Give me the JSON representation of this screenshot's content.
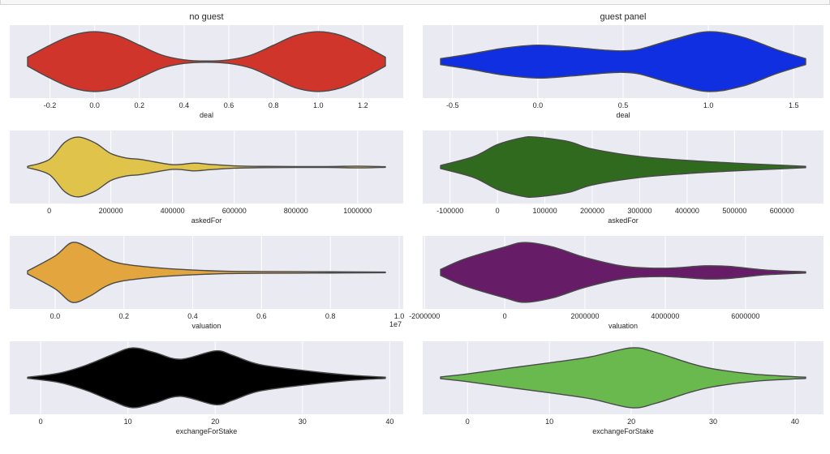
{
  "chart_data": [
    {
      "type": "violin",
      "title": "no guest",
      "xlabel": "deal",
      "xlim": [
        -0.3,
        1.3
      ],
      "color": "#d0352b",
      "ticks": [
        -0.2,
        0.0,
        0.2,
        0.4,
        0.6,
        0.8,
        1.0,
        1.2
      ],
      "tick_labels": [
        "-0.2",
        "0.0",
        "0.2",
        "0.4",
        "0.6",
        "0.8",
        "1.0",
        "1.2"
      ],
      "density": [
        [
          -0.3,
          0.15
        ],
        [
          -0.2,
          0.55
        ],
        [
          -0.1,
          0.88
        ],
        [
          0.0,
          1.0
        ],
        [
          0.1,
          0.88
        ],
        [
          0.2,
          0.55
        ],
        [
          0.3,
          0.22
        ],
        [
          0.4,
          0.06
        ],
        [
          0.5,
          0.02
        ],
        [
          0.6,
          0.06
        ],
        [
          0.7,
          0.22
        ],
        [
          0.8,
          0.55
        ],
        [
          0.9,
          0.88
        ],
        [
          1.0,
          1.0
        ],
        [
          1.1,
          0.88
        ],
        [
          1.2,
          0.55
        ],
        [
          1.3,
          0.15
        ]
      ]
    },
    {
      "type": "violin",
      "title": "guest panel",
      "xlabel": "deal",
      "xlim": [
        -0.57,
        1.57
      ],
      "color": "#0f2fe0",
      "ticks": [
        -0.5,
        0.0,
        0.5,
        1.0,
        1.5
      ],
      "tick_labels": [
        "-0.5",
        "0.0",
        "0.5",
        "1.0",
        "1.5"
      ],
      "density": [
        [
          -0.57,
          0.1
        ],
        [
          -0.4,
          0.25
        ],
        [
          -0.2,
          0.45
        ],
        [
          0.0,
          0.55
        ],
        [
          0.2,
          0.48
        ],
        [
          0.4,
          0.38
        ],
        [
          0.5,
          0.36
        ],
        [
          0.6,
          0.42
        ],
        [
          0.8,
          0.75
        ],
        [
          1.0,
          1.0
        ],
        [
          1.2,
          0.82
        ],
        [
          1.4,
          0.4
        ],
        [
          1.57,
          0.1
        ]
      ]
    },
    {
      "type": "violin",
      "title": "",
      "xlabel": "askedFor",
      "xlim": [
        -70000,
        1090000
      ],
      "color": "#dfc34a",
      "ticks": [
        0,
        200000,
        400000,
        600000,
        800000,
        1000000
      ],
      "tick_labels": [
        "0",
        "200000",
        "400000",
        "600000",
        "800000",
        "1000000"
      ],
      "density": [
        [
          -70000,
          0.02
        ],
        [
          0,
          0.25
        ],
        [
          50000,
          0.82
        ],
        [
          95000,
          1.0
        ],
        [
          150000,
          0.8
        ],
        [
          200000,
          0.45
        ],
        [
          250000,
          0.3
        ],
        [
          300000,
          0.25
        ],
        [
          400000,
          0.08
        ],
        [
          470000,
          0.13
        ],
        [
          520000,
          0.09
        ],
        [
          600000,
          0.04
        ],
        [
          700000,
          0.02
        ],
        [
          900000,
          0.015
        ],
        [
          1000000,
          0.03
        ],
        [
          1090000,
          0.01
        ]
      ]
    },
    {
      "type": "violin",
      "title": "",
      "xlabel": "askedFor",
      "xlim": [
        -120000,
        650000
      ],
      "color": "#2f6a1e",
      "ticks": [
        -100000,
        0,
        100000,
        200000,
        300000,
        400000,
        500000,
        600000
      ],
      "tick_labels": [
        "-100000",
        "0",
        "100000",
        "200000",
        "300000",
        "400000",
        "500000",
        "600000"
      ],
      "density": [
        [
          -120000,
          0.05
        ],
        [
          -50000,
          0.35
        ],
        [
          0,
          0.75
        ],
        [
          50000,
          0.97
        ],
        [
          80000,
          1.0
        ],
        [
          150000,
          0.85
        ],
        [
          200000,
          0.6
        ],
        [
          300000,
          0.35
        ],
        [
          400000,
          0.22
        ],
        [
          500000,
          0.13
        ],
        [
          600000,
          0.06
        ],
        [
          650000,
          0.02
        ]
      ]
    },
    {
      "type": "violin",
      "title": "",
      "xlabel": "valuation",
      "axis_offset": "1e7",
      "xlim": [
        -0.08,
        0.96
      ],
      "color": "#e3a53e",
      "ticks": [
        0.0,
        0.2,
        0.4,
        0.6,
        0.8,
        1.0
      ],
      "tick_labels": [
        "0.0",
        "0.2",
        "0.4",
        "0.6",
        "0.8",
        "1.0"
      ],
      "density": [
        [
          -0.08,
          0.05
        ],
        [
          0.0,
          0.55
        ],
        [
          0.05,
          1.0
        ],
        [
          0.1,
          0.8
        ],
        [
          0.15,
          0.45
        ],
        [
          0.2,
          0.28
        ],
        [
          0.3,
          0.15
        ],
        [
          0.4,
          0.08
        ],
        [
          0.5,
          0.04
        ],
        [
          0.6,
          0.03
        ],
        [
          0.8,
          0.02
        ],
        [
          0.96,
          0.01
        ]
      ]
    },
    {
      "type": "violin",
      "title": "",
      "xlabel": "valuation",
      "xlim": [
        -1600000,
        7500000
      ],
      "color": "#661c67",
      "ticks": [
        -2000000,
        0,
        2000000,
        4000000,
        6000000
      ],
      "tick_labels": [
        "-2000000",
        "0",
        "2000000",
        "4000000",
        "6000000"
      ],
      "density": [
        [
          -1600000,
          0.1
        ],
        [
          -1000000,
          0.45
        ],
        [
          0,
          0.85
        ],
        [
          500000,
          1.0
        ],
        [
          1200000,
          0.85
        ],
        [
          2000000,
          0.5
        ],
        [
          3000000,
          0.2
        ],
        [
          4000000,
          0.14
        ],
        [
          5000000,
          0.22
        ],
        [
          5600000,
          0.2
        ],
        [
          6500000,
          0.08
        ],
        [
          7500000,
          0.02
        ]
      ]
    },
    {
      "type": "violin",
      "title": "",
      "xlabel": "exchangeForStake",
      "xlim": [
        -1.5,
        39.5
      ],
      "color": "#000000",
      "ticks": [
        0,
        10,
        20,
        30,
        40
      ],
      "tick_labels": [
        "0",
        "10",
        "20",
        "30",
        "40"
      ],
      "density": [
        [
          -1.5,
          0.02
        ],
        [
          2,
          0.15
        ],
        [
          5,
          0.4
        ],
        [
          8,
          0.75
        ],
        [
          10.5,
          1.0
        ],
        [
          13,
          0.85
        ],
        [
          16,
          0.62
        ],
        [
          20,
          0.9
        ],
        [
          22,
          0.75
        ],
        [
          25,
          0.45
        ],
        [
          30,
          0.25
        ],
        [
          35,
          0.1
        ],
        [
          39.5,
          0.02
        ]
      ]
    },
    {
      "type": "violin",
      "title": "",
      "xlabel": "exchangeForStake",
      "xlim": [
        -3.3,
        41.3
      ],
      "color": "#69b94f",
      "ticks": [
        0,
        10,
        20,
        30,
        40
      ],
      "tick_labels": [
        "0",
        "10",
        "20",
        "30",
        "40"
      ],
      "density": [
        [
          -3.3,
          0.03
        ],
        [
          0,
          0.13
        ],
        [
          5,
          0.32
        ],
        [
          10,
          0.5
        ],
        [
          15,
          0.7
        ],
        [
          20,
          1.0
        ],
        [
          23,
          0.85
        ],
        [
          27,
          0.5
        ],
        [
          30,
          0.3
        ],
        [
          35,
          0.12
        ],
        [
          41.3,
          0.02
        ]
      ]
    }
  ]
}
